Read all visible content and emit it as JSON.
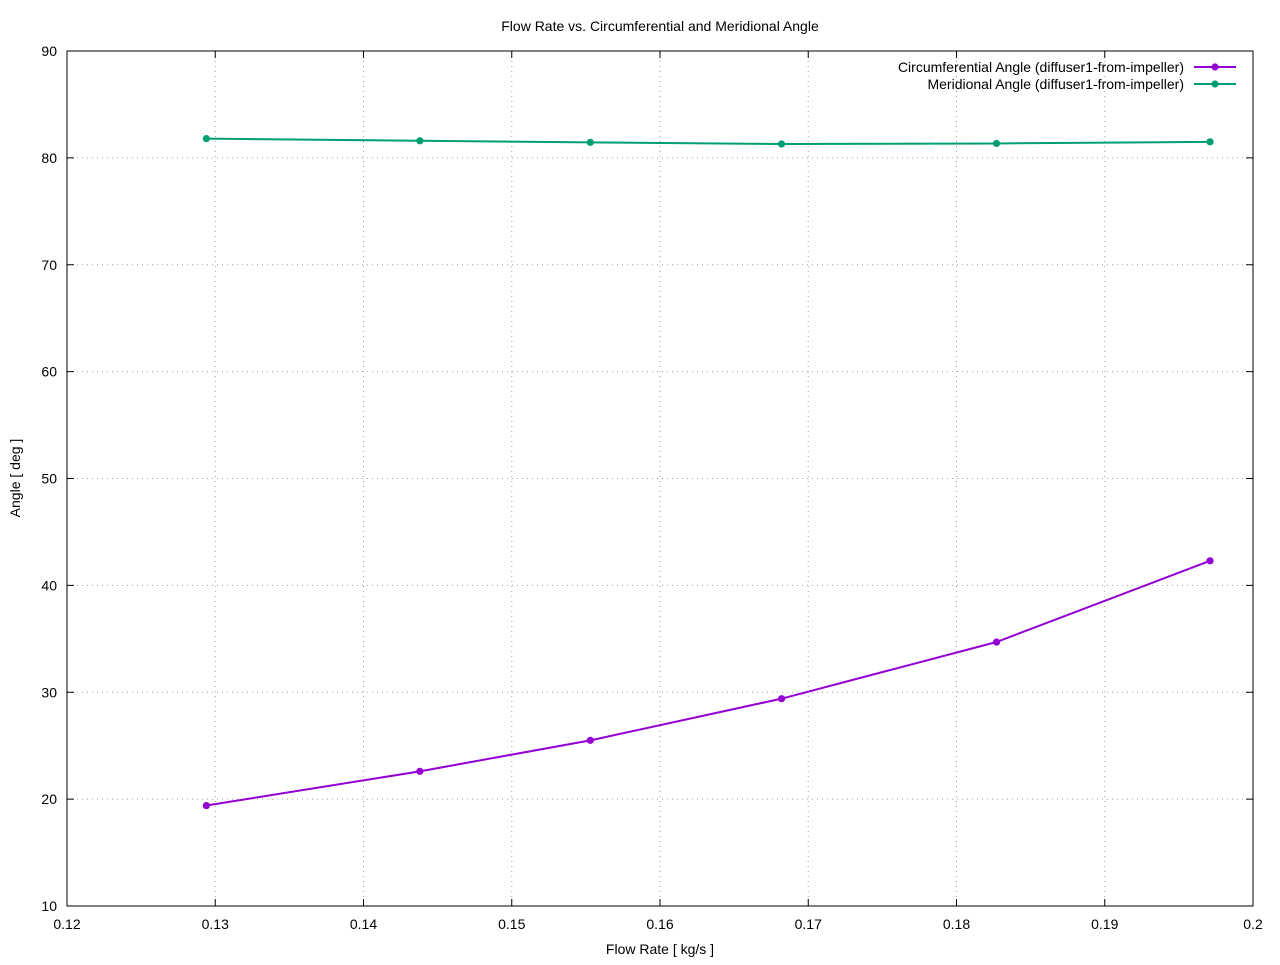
{
  "chart_data": {
    "type": "line",
    "title": "Flow Rate vs. Circumferential and Meridional Angle",
    "xlabel": "Flow Rate [ kg/s ]",
    "ylabel": "Angle [ deg ]",
    "xlim": [
      0.12,
      0.2
    ],
    "ylim": [
      10,
      90
    ],
    "xticks": [
      "0.12",
      "0.13",
      "0.14",
      "0.15",
      "0.16",
      "0.17",
      "0.18",
      "0.19",
      "0.2"
    ],
    "yticks": [
      "10",
      "20",
      "30",
      "40",
      "50",
      "60",
      "70",
      "80",
      "90"
    ],
    "grid": true,
    "legend_position": "top-right",
    "series": [
      {
        "name": "Circumferential Angle (diffuser1-from-impeller)",
        "color": "#9400d3",
        "x": [
          0.1294,
          0.1438,
          0.1553,
          0.1682,
          0.1827,
          0.1971
        ],
        "y": [
          19.4,
          22.6,
          25.5,
          29.4,
          34.7,
          42.3
        ]
      },
      {
        "name": "Meridional Angle (diffuser1-from-impeller)",
        "color": "#009e73",
        "x": [
          0.1294,
          0.1438,
          0.1553,
          0.1682,
          0.1827,
          0.1971
        ],
        "y": [
          81.8,
          81.6,
          81.45,
          81.3,
          81.35,
          81.5
        ]
      }
    ]
  }
}
